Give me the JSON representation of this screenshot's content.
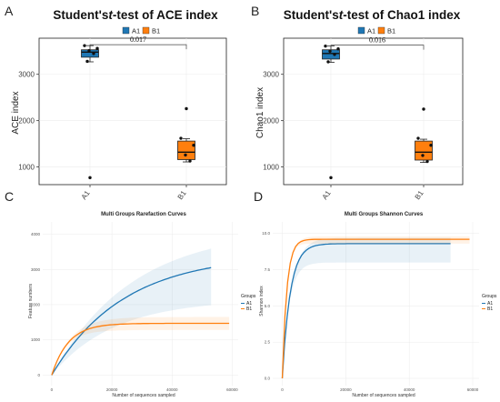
{
  "panels": {
    "A": {
      "letter": "A"
    },
    "B": {
      "letter": "B"
    },
    "C": {
      "letter": "C"
    },
    "D": {
      "letter": "D"
    }
  },
  "colors": {
    "A1": "#1f77b4",
    "B1": "#ff7f0e"
  },
  "chart_data": [
    {
      "type": "box",
      "panel": "A",
      "title": "Student's t-test of ACE index",
      "title_parts": {
        "before": "Student's",
        "italic": "t",
        "after": "-test of ACE index"
      },
      "ylabel": "ACE index",
      "categories": [
        "A1",
        "B1"
      ],
      "legend": [
        "A1",
        "B1"
      ],
      "yticks": [
        1000,
        2000,
        3000
      ],
      "ylim": [
        620,
        3780
      ],
      "boxes": [
        {
          "group": "A1",
          "q1": 3370,
          "median": 3480,
          "q3": 3530,
          "whisker_low": 3270,
          "whisker_high": 3620,
          "points": [
            3620,
            3560,
            3510,
            3450,
            3280
          ],
          "outliers": [
            770
          ]
        },
        {
          "group": "B1",
          "q1": 1160,
          "median": 1320,
          "q3": 1560,
          "whisker_low": 1110,
          "whisker_high": 1610,
          "points": [
            1620,
            1470,
            1260,
            1130
          ],
          "outliers": [
            2260
          ]
        }
      ],
      "significance": {
        "label": "0.017",
        "y": 3640
      }
    },
    {
      "type": "box",
      "panel": "B",
      "title": "Student's t-test of Chao1 index",
      "title_parts": {
        "before": "Student's",
        "italic": "t",
        "after": "-test of Chao1 index"
      },
      "ylabel": "Chao1 index",
      "categories": [
        "A1",
        "B1"
      ],
      "legend": [
        "A1",
        "B1"
      ],
      "yticks": [
        1000,
        2000,
        3000
      ],
      "ylim": [
        620,
        3780
      ],
      "boxes": [
        {
          "group": "A1",
          "q1": 3330,
          "median": 3450,
          "q3": 3530,
          "whisker_low": 3260,
          "whisker_high": 3610,
          "points": [
            3610,
            3550,
            3500,
            3430,
            3270
          ],
          "outliers": [
            770
          ]
        },
        {
          "group": "B1",
          "q1": 1150,
          "median": 1320,
          "q3": 1560,
          "whisker_low": 1100,
          "whisker_high": 1600,
          "points": [
            1620,
            1470,
            1250,
            1120
          ],
          "outliers": [
            2250
          ]
        }
      ],
      "significance": {
        "label": "0.016",
        "y": 3630
      }
    },
    {
      "type": "line",
      "panel": "C",
      "title": "Multi Groups Rarefaction Curves",
      "xlabel": "Number of sequences sampled",
      "ylabel": "Feature numbers",
      "legend_title": "Groups",
      "xticks": [
        0,
        20000,
        40000,
        60000
      ],
      "yticks": [
        0,
        1000,
        2000,
        3000,
        4000
      ],
      "xlim": [
        -3000,
        62000
      ],
      "ylim": [
        -300,
        4350
      ],
      "series": [
        {
          "name": "A1",
          "xmax": 53000,
          "asymptote": 3420,
          "k": 4.2e-05,
          "band_upper": 4150,
          "band_lower": 2150
        },
        {
          "name": "B1",
          "xmax": 59000,
          "asymptote": 1470,
          "k": 0.00018,
          "band_upper": 1650,
          "band_lower": 1280
        }
      ]
    },
    {
      "type": "line",
      "panel": "D",
      "title": "Multi Groups Shannon Curves",
      "xlabel": "Number of sequences sampled",
      "ylabel": "Shannon index",
      "legend_title": "Groups",
      "xticks": [
        0,
        20000,
        40000,
        60000
      ],
      "yticks": [
        0.0,
        2.5,
        5.0,
        7.5,
        10.0
      ],
      "xlim": [
        -3000,
        62000
      ],
      "ylim": [
        -0.5,
        10.8
      ],
      "series": [
        {
          "name": "A1",
          "xmax": 53000,
          "asymptote": 9.3,
          "k": 0.0004,
          "band_upper": 9.7,
          "band_lower": 8.0
        },
        {
          "name": "B1",
          "xmax": 59000,
          "asymptote": 9.6,
          "k": 0.0007,
          "band_upper": 9.8,
          "band_lower": 9.3
        }
      ]
    }
  ]
}
